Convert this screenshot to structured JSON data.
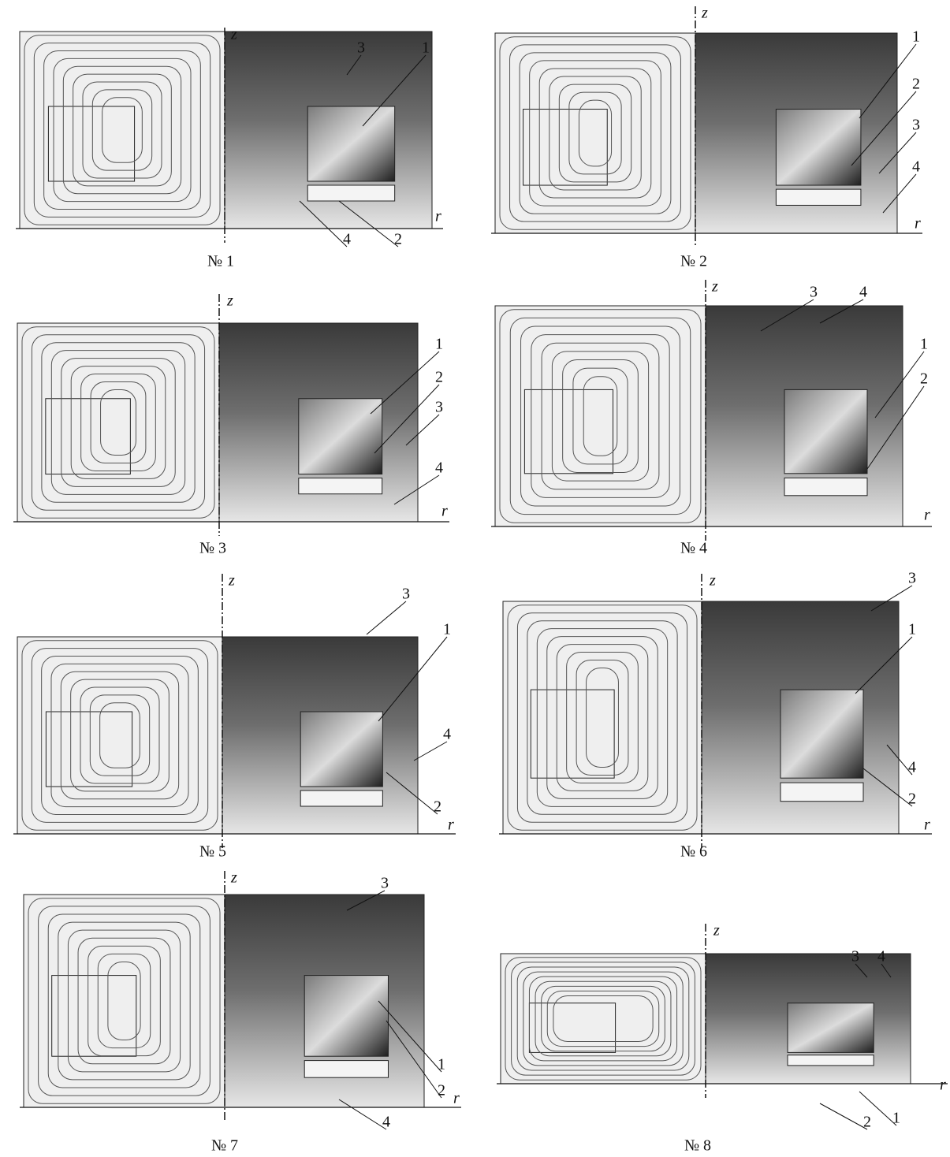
{
  "panels": [
    {
      "caption": "№ 1",
      "axis_z": "z",
      "axis_r": "r",
      "part_labels": [
        "3",
        "1",
        "4",
        "2"
      ]
    },
    {
      "caption": "№ 2",
      "axis_z": "z",
      "axis_r": "r",
      "part_labels": [
        "1",
        "2",
        "3",
        "4"
      ]
    },
    {
      "caption": "№ 3",
      "axis_z": "z",
      "axis_r": "r",
      "part_labels": [
        "1",
        "2",
        "3",
        "4"
      ]
    },
    {
      "caption": "№ 4",
      "axis_z": "z",
      "axis_r": "r",
      "part_labels": [
        "3",
        "4",
        "1",
        "2"
      ]
    },
    {
      "caption": "№ 5",
      "axis_z": "z",
      "axis_r": "r",
      "part_labels": [
        "3",
        "1",
        "4",
        "2"
      ]
    },
    {
      "caption": "№ 6",
      "axis_z": "z",
      "axis_r": "r",
      "part_labels": [
        "3",
        "1",
        "4",
        "2"
      ]
    },
    {
      "caption": "№ 7",
      "axis_z": "z",
      "axis_r": "r",
      "part_labels": [
        "3",
        "1",
        "2",
        "4"
      ]
    },
    {
      "caption": "№ 8",
      "axis_z": "z",
      "axis_r": "r",
      "part_labels": [
        "3",
        "4",
        "1",
        "2"
      ]
    }
  ]
}
